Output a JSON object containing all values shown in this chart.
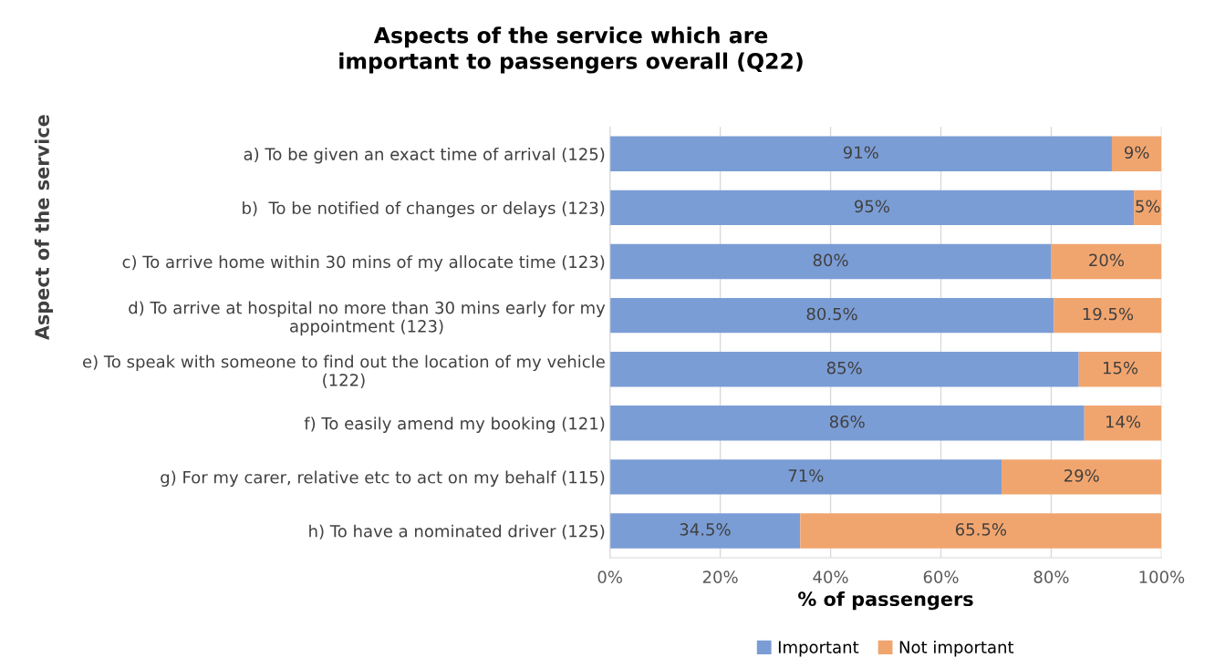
{
  "chart_data": {
    "type": "bar",
    "orientation": "horizontal",
    "stacked": true,
    "title": "Aspects of the service which are\nimportant to passengers overall (Q22)",
    "xlabel": "% of passengers",
    "ylabel": "Aspect of the service",
    "categories": [
      "a) To be given an exact time of arrival (125)",
      "b)  To be notified of changes or delays (123)",
      "c) To arrive home within 30 mins of my allocate time (123)",
      "d) To arrive at hospital no more than 30 mins early for my\nappointment (123)",
      "e) To speak with someone to find out the location of my vehicle\n(122)",
      "f) To easily amend my booking (121)",
      "g) For my carer, relative etc to act on my behalf (115)",
      "h) To have a nominated driver (125)"
    ],
    "series": [
      {
        "name": "Important",
        "color": "#7b9dd5",
        "values": [
          91,
          95,
          80,
          80.5,
          85,
          86,
          71,
          34.5
        ],
        "value_labels": [
          "91%",
          "95%",
          "80%",
          "80.5%",
          "85%",
          "86%",
          "71%",
          "34.5%"
        ]
      },
      {
        "name": "Not important",
        "color": "#f1a56e",
        "values": [
          9,
          5,
          20,
          19.5,
          15,
          14,
          29,
          65.5
        ],
        "value_labels": [
          "9%",
          "5%",
          "20%",
          "19.5%",
          "15%",
          "14%",
          "29%",
          "65.5%"
        ]
      }
    ],
    "xlim": [
      0,
      100
    ],
    "xticks": [
      {
        "value": 0,
        "label": "0%"
      },
      {
        "value": 20,
        "label": "20%"
      },
      {
        "value": 40,
        "label": "40%"
      },
      {
        "value": 60,
        "label": "60%"
      },
      {
        "value": 80,
        "label": "80%"
      },
      {
        "value": 100,
        "label": "100%"
      }
    ],
    "grid": "x",
    "legend": "bottom"
  }
}
